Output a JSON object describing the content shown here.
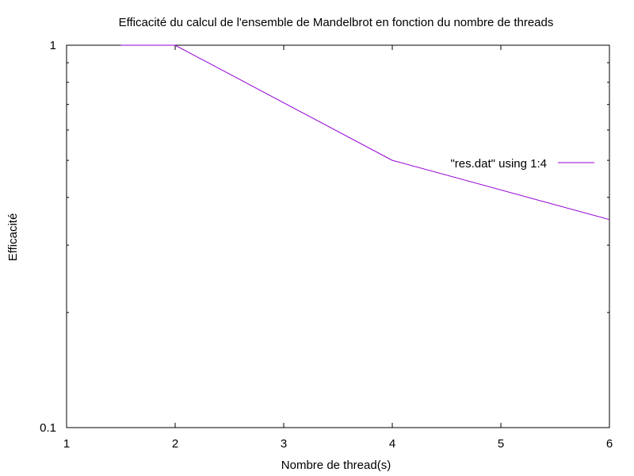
{
  "chart_data": {
    "type": "line",
    "title": "Efficacité du calcul de l'ensemble de Mandelbrot en fonction du nombre de threads",
    "xlabel": "Nombre de thread(s)",
    "ylabel": "Efficacité",
    "xlim": [
      1,
      6
    ],
    "ylim": [
      0.1,
      1
    ],
    "yscale": "log",
    "grid": false,
    "legend_position": "top-right",
    "x_ticks": [
      "1",
      "2",
      "3",
      "4",
      "5",
      "6"
    ],
    "y_ticks": [
      "0.1",
      "1"
    ],
    "series": [
      {
        "name": "\"res.dat\" using 1:4",
        "color": "#9400D3",
        "x": [
          1.5,
          2,
          4,
          6
        ],
        "y": [
          1.0,
          1.0,
          0.5,
          0.35
        ]
      }
    ]
  }
}
